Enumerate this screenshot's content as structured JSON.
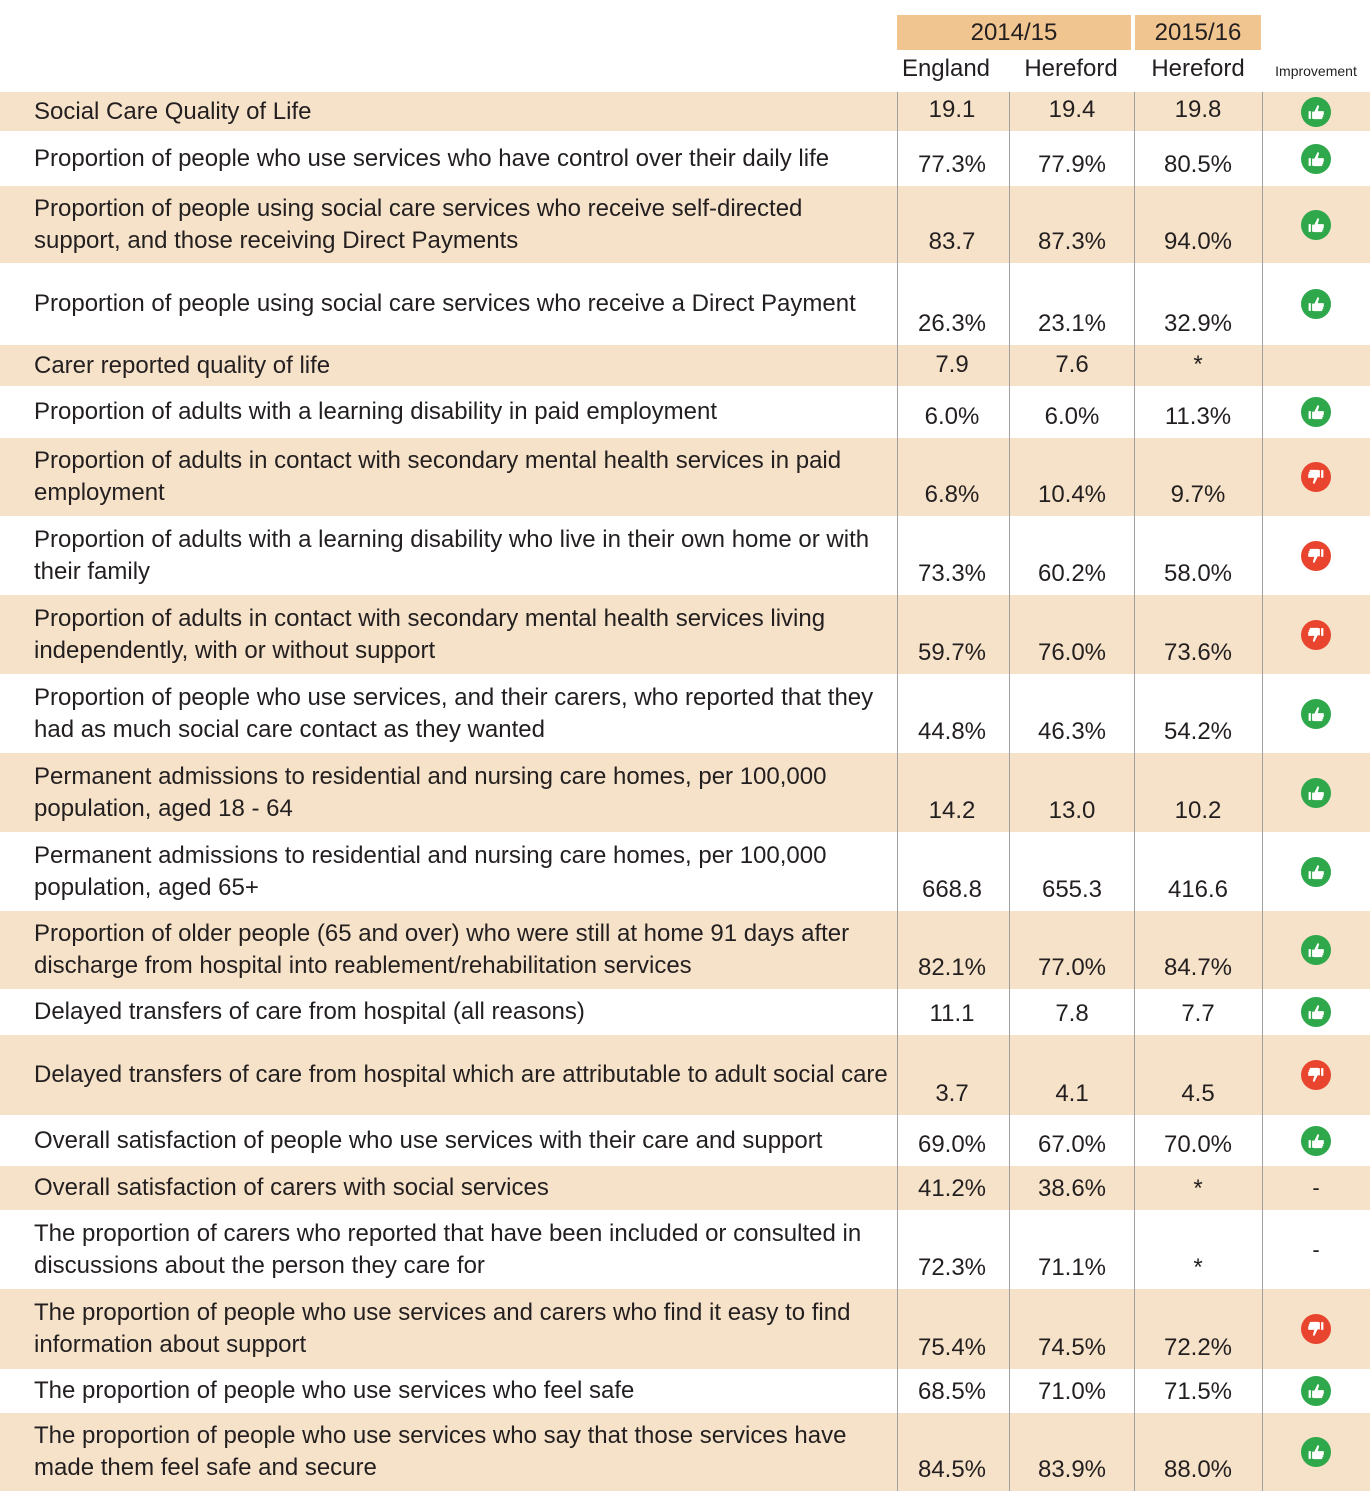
{
  "table": {
    "header_groups": [
      "2014/15",
      "2015/16"
    ],
    "columns": [
      "England",
      "Hereford",
      "Hereford",
      "Improvement"
    ],
    "rows": [
      {
        "label": "Social Care Quality of Life",
        "values": [
          "19.1",
          "19.4",
          "19.8"
        ],
        "improvement": "up"
      },
      {
        "label": "Proportion of people who use services who have control over their daily life",
        "values": [
          "77.3%",
          "77.9%",
          "80.5%"
        ],
        "improvement": "up"
      },
      {
        "label": "Proportion of people using social care services who receive self-directed support, and those receiving Direct Payments",
        "values": [
          "83.7",
          "87.3%",
          "94.0%"
        ],
        "improvement": "up"
      },
      {
        "label": "Proportion of people using social care services who receive a Direct Payment",
        "values": [
          "26.3%",
          "23.1%",
          "32.9%"
        ],
        "improvement": "up"
      },
      {
        "label": "Carer reported quality of life",
        "values": [
          "7.9",
          "7.6",
          "*"
        ],
        "improvement": null
      },
      {
        "label": "Proportion of adults with a learning disability in paid employment",
        "values": [
          "6.0%",
          "6.0%",
          "11.3%"
        ],
        "improvement": "up"
      },
      {
        "label": "Proportion of adults in contact with secondary mental health services in paid employment",
        "values": [
          "6.8%",
          "10.4%",
          "9.7%"
        ],
        "improvement": "down"
      },
      {
        "label": "Proportion of adults with a learning disability who live in their own home or with their family",
        "values": [
          "73.3%",
          "60.2%",
          "58.0%"
        ],
        "improvement": "down"
      },
      {
        "label": "Proportion of adults in contact with secondary mental health services living independently, with or without support",
        "values": [
          "59.7%",
          "76.0%",
          "73.6%"
        ],
        "improvement": "down"
      },
      {
        "label": "Proportion of people who use services, and their carers, who reported that they had as much social care contact as they wanted",
        "values": [
          "44.8%",
          "46.3%",
          "54.2%"
        ],
        "improvement": "up"
      },
      {
        "label": "Permanent admissions to residential and nursing care homes, per 100,000 population, aged 18 - 64",
        "values": [
          "14.2",
          "13.0",
          "10.2"
        ],
        "improvement": "up"
      },
      {
        "label": "Permanent admissions to residential and nursing care homes, per 100,000 population, aged 65+",
        "values": [
          "668.8",
          "655.3",
          "416.6"
        ],
        "improvement": "up"
      },
      {
        "label": "Proportion of older people (65 and over) who were still at home 91 days after discharge from hospital into reablement/rehabilitation services",
        "values": [
          "82.1%",
          "77.0%",
          "84.7%"
        ],
        "improvement": "up"
      },
      {
        "label": "Delayed transfers of care from hospital (all reasons)",
        "values": [
          "11.1",
          "7.8",
          "7.7"
        ],
        "improvement": "up"
      },
      {
        "label": "Delayed transfers of care from hospital which are attributable to adult social care",
        "values": [
          "3.7",
          "4.1",
          "4.5"
        ],
        "improvement": "down"
      },
      {
        "label": "Overall satisfaction of people who use services with their care and support",
        "values": [
          "69.0%",
          "67.0%",
          "70.0%"
        ],
        "improvement": "up"
      },
      {
        "label": "Overall satisfaction of carers with social services",
        "values": [
          "41.2%",
          "38.6%",
          "*"
        ],
        "improvement": "-"
      },
      {
        "label": "The proportion of carers who reported that have been included or consulted in discussions about the person they care for",
        "values": [
          "72.3%",
          "71.1%",
          "*"
        ],
        "improvement": "-"
      },
      {
        "label": "The proportion of people who use services and carers who find it easy to find information about support",
        "values": [
          "75.4%",
          "74.5%",
          "72.2%"
        ],
        "improvement": "down"
      },
      {
        "label": "The proportion of people who use services who feel safe",
        "values": [
          "68.5%",
          "71.0%",
          "71.5%"
        ],
        "improvement": "up"
      },
      {
        "label": "The proportion of people who use services who say that those services have made them feel safe and secure",
        "values": [
          "84.5%",
          "83.9%",
          "88.0%"
        ],
        "improvement": "up"
      }
    ]
  }
}
